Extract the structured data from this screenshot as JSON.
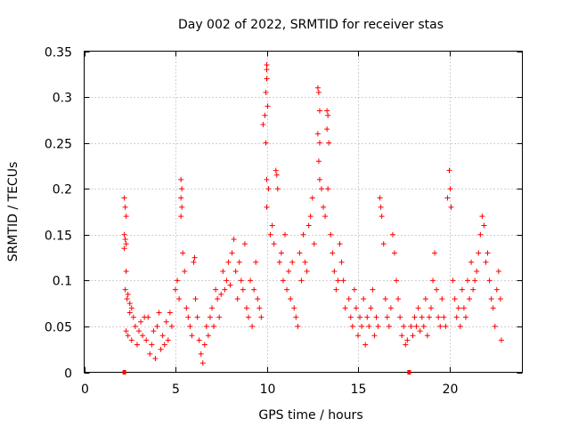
{
  "chart_data": {
    "type": "scatter",
    "title": "Day 002 of 2022, SRMTID for receiver stas",
    "xlabel": "GPS time / hours",
    "ylabel": "SRMTID / TECUs",
    "xlim": [
      0,
      24
    ],
    "ylim": [
      0,
      0.35
    ],
    "xticks": [
      0,
      5,
      10,
      15,
      20
    ],
    "yticks": [
      0,
      0.05,
      0.1,
      0.15,
      0.2,
      0.25,
      0.3,
      0.35
    ],
    "xtick_labels": [
      "0",
      "5",
      "10",
      "15",
      "20"
    ],
    "ytick_labels": [
      "0",
      "0.05",
      "0.1",
      "0.15",
      "0.2",
      "0.25",
      "0.3",
      "0.35"
    ],
    "grid": true,
    "marker": "+",
    "series_color": "#ff0000",
    "axis_markers": [
      {
        "x": 2.2,
        "y": 0
      },
      {
        "x": 17.8,
        "y": 0
      }
    ],
    "series": [
      {
        "name": "stas",
        "points": [
          [
            2.2,
            0.19
          ],
          [
            2.25,
            0.18
          ],
          [
            2.3,
            0.17
          ],
          [
            2.2,
            0.15
          ],
          [
            2.25,
            0.145
          ],
          [
            2.3,
            0.14
          ],
          [
            2.2,
            0.135
          ],
          [
            2.3,
            0.11
          ],
          [
            2.25,
            0.09
          ],
          [
            2.35,
            0.08
          ],
          [
            2.4,
            0.085
          ],
          [
            2.5,
            0.075
          ],
          [
            2.6,
            0.07
          ],
          [
            2.5,
            0.065
          ],
          [
            2.7,
            0.06
          ],
          [
            2.3,
            0.045
          ],
          [
            2.4,
            0.04
          ],
          [
            2.6,
            0.035
          ],
          [
            2.8,
            0.05
          ],
          [
            3.0,
            0.045
          ],
          [
            3.2,
            0.04
          ],
          [
            3.4,
            0.035
          ],
          [
            3.5,
            0.06
          ],
          [
            3.7,
            0.03
          ],
          [
            3.8,
            0.045
          ],
          [
            4.0,
            0.05
          ],
          [
            4.2,
            0.025
          ],
          [
            4.3,
            0.04
          ],
          [
            4.5,
            0.055
          ],
          [
            4.6,
            0.035
          ],
          [
            4.8,
            0.05
          ],
          [
            3.1,
            0.055
          ],
          [
            3.6,
            0.02
          ],
          [
            4.1,
            0.065
          ],
          [
            2.9,
            0.03
          ],
          [
            3.3,
            0.06
          ],
          [
            4.4,
            0.03
          ],
          [
            4.7,
            0.065
          ],
          [
            3.9,
            0.015
          ],
          [
            5.0,
            0.09
          ],
          [
            5.1,
            0.1
          ],
          [
            5.2,
            0.08
          ],
          [
            5.3,
            0.21
          ],
          [
            5.35,
            0.2
          ],
          [
            5.3,
            0.19
          ],
          [
            5.35,
            0.18
          ],
          [
            5.3,
            0.17
          ],
          [
            5.4,
            0.13
          ],
          [
            5.5,
            0.11
          ],
          [
            5.6,
            0.07
          ],
          [
            5.7,
            0.06
          ],
          [
            5.8,
            0.05
          ],
          [
            5.9,
            0.04
          ],
          [
            6.0,
            0.12
          ],
          [
            6.05,
            0.125
          ],
          [
            6.1,
            0.08
          ],
          [
            6.2,
            0.06
          ],
          [
            6.3,
            0.035
          ],
          [
            6.4,
            0.02
          ],
          [
            6.5,
            0.01
          ],
          [
            6.6,
            0.03
          ],
          [
            6.7,
            0.05
          ],
          [
            6.8,
            0.04
          ],
          [
            6.9,
            0.06
          ],
          [
            7.0,
            0.07
          ],
          [
            7.1,
            0.05
          ],
          [
            7.2,
            0.09
          ],
          [
            7.3,
            0.08
          ],
          [
            7.4,
            0.06
          ],
          [
            7.5,
            0.085
          ],
          [
            7.6,
            0.11
          ],
          [
            7.7,
            0.09
          ],
          [
            7.8,
            0.1
          ],
          [
            7.9,
            0.12
          ],
          [
            8.0,
            0.095
          ],
          [
            8.1,
            0.13
          ],
          [
            8.2,
            0.145
          ],
          [
            8.3,
            0.11
          ],
          [
            8.4,
            0.08
          ],
          [
            8.5,
            0.12
          ],
          [
            8.6,
            0.1
          ],
          [
            8.7,
            0.09
          ],
          [
            8.8,
            0.14
          ],
          [
            8.9,
            0.07
          ],
          [
            9.0,
            0.06
          ],
          [
            9.1,
            0.1
          ],
          [
            9.2,
            0.05
          ],
          [
            9.3,
            0.09
          ],
          [
            9.4,
            0.12
          ],
          [
            9.5,
            0.08
          ],
          [
            9.6,
            0.07
          ],
          [
            9.7,
            0.06
          ],
          [
            9.8,
            0.27
          ],
          [
            9.9,
            0.28
          ],
          [
            9.95,
            0.25
          ],
          [
            10.0,
            0.335
          ],
          [
            10.0,
            0.33
          ],
          [
            10.0,
            0.32
          ],
          [
            9.95,
            0.305
          ],
          [
            10.05,
            0.29
          ],
          [
            10.0,
            0.21
          ],
          [
            10.1,
            0.2
          ],
          [
            10.0,
            0.18
          ],
          [
            10.2,
            0.15
          ],
          [
            10.3,
            0.16
          ],
          [
            10.4,
            0.14
          ],
          [
            10.5,
            0.22
          ],
          [
            10.55,
            0.215
          ],
          [
            10.6,
            0.2
          ],
          [
            10.7,
            0.12
          ],
          [
            10.8,
            0.13
          ],
          [
            10.9,
            0.1
          ],
          [
            11.0,
            0.15
          ],
          [
            11.1,
            0.09
          ],
          [
            11.2,
            0.11
          ],
          [
            11.3,
            0.08
          ],
          [
            11.4,
            0.12
          ],
          [
            11.5,
            0.07
          ],
          [
            11.6,
            0.06
          ],
          [
            11.7,
            0.05
          ],
          [
            11.8,
            0.13
          ],
          [
            11.9,
            0.1
          ],
          [
            12.0,
            0.15
          ],
          [
            12.1,
            0.12
          ],
          [
            12.2,
            0.11
          ],
          [
            12.3,
            0.16
          ],
          [
            12.4,
            0.17
          ],
          [
            12.5,
            0.19
          ],
          [
            12.6,
            0.14
          ],
          [
            12.8,
            0.31
          ],
          [
            12.85,
            0.305
          ],
          [
            12.9,
            0.285
          ],
          [
            12.8,
            0.26
          ],
          [
            12.9,
            0.25
          ],
          [
            12.85,
            0.23
          ],
          [
            12.9,
            0.21
          ],
          [
            13.0,
            0.2
          ],
          [
            13.1,
            0.18
          ],
          [
            13.2,
            0.17
          ],
          [
            13.3,
            0.285
          ],
          [
            13.35,
            0.28
          ],
          [
            13.3,
            0.265
          ],
          [
            13.4,
            0.25
          ],
          [
            13.35,
            0.2
          ],
          [
            13.5,
            0.15
          ],
          [
            13.6,
            0.13
          ],
          [
            13.7,
            0.11
          ],
          [
            13.8,
            0.09
          ],
          [
            13.9,
            0.1
          ],
          [
            14.0,
            0.14
          ],
          [
            14.1,
            0.12
          ],
          [
            14.2,
            0.1
          ],
          [
            14.3,
            0.07
          ],
          [
            14.5,
            0.08
          ],
          [
            14.6,
            0.06
          ],
          [
            14.7,
            0.05
          ],
          [
            14.8,
            0.09
          ],
          [
            14.9,
            0.07
          ],
          [
            15.0,
            0.04
          ],
          [
            15.1,
            0.06
          ],
          [
            15.2,
            0.05
          ],
          [
            15.3,
            0.08
          ],
          [
            15.4,
            0.03
          ],
          [
            15.5,
            0.06
          ],
          [
            15.6,
            0.05
          ],
          [
            15.7,
            0.07
          ],
          [
            15.8,
            0.09
          ],
          [
            15.9,
            0.04
          ],
          [
            16.0,
            0.06
          ],
          [
            16.1,
            0.05
          ],
          [
            16.2,
            0.19
          ],
          [
            16.25,
            0.18
          ],
          [
            16.3,
            0.17
          ],
          [
            16.4,
            0.14
          ],
          [
            16.5,
            0.08
          ],
          [
            16.6,
            0.06
          ],
          [
            16.7,
            0.05
          ],
          [
            16.8,
            0.07
          ],
          [
            16.9,
            0.15
          ],
          [
            17.0,
            0.13
          ],
          [
            17.1,
            0.1
          ],
          [
            17.2,
            0.08
          ],
          [
            17.3,
            0.06
          ],
          [
            17.4,
            0.04
          ],
          [
            17.5,
            0.05
          ],
          [
            17.6,
            0.03
          ],
          [
            17.7,
            0.035
          ],
          [
            17.9,
            0.05
          ],
          [
            18.0,
            0.04
          ],
          [
            18.1,
            0.06
          ],
          [
            18.2,
            0.05
          ],
          [
            18.3,
            0.07
          ],
          [
            18.4,
            0.045
          ],
          [
            18.5,
            0.06
          ],
          [
            18.6,
            0.05
          ],
          [
            18.7,
            0.08
          ],
          [
            18.8,
            0.04
          ],
          [
            18.9,
            0.06
          ],
          [
            19.0,
            0.07
          ],
          [
            19.1,
            0.1
          ],
          [
            19.2,
            0.13
          ],
          [
            19.3,
            0.09
          ],
          [
            19.4,
            0.06
          ],
          [
            19.5,
            0.05
          ],
          [
            19.6,
            0.08
          ],
          [
            19.7,
            0.06
          ],
          [
            19.8,
            0.05
          ],
          [
            19.9,
            0.19
          ],
          [
            20.0,
            0.22
          ],
          [
            20.05,
            0.2
          ],
          [
            20.1,
            0.18
          ],
          [
            20.2,
            0.1
          ],
          [
            20.3,
            0.08
          ],
          [
            20.4,
            0.06
          ],
          [
            20.5,
            0.07
          ],
          [
            20.6,
            0.05
          ],
          [
            20.7,
            0.09
          ],
          [
            20.8,
            0.07
          ],
          [
            20.9,
            0.06
          ],
          [
            21.0,
            0.1
          ],
          [
            21.1,
            0.08
          ],
          [
            21.2,
            0.12
          ],
          [
            21.3,
            0.09
          ],
          [
            21.4,
            0.1
          ],
          [
            21.5,
            0.11
          ],
          [
            21.6,
            0.13
          ],
          [
            21.7,
            0.15
          ],
          [
            21.8,
            0.17
          ],
          [
            21.9,
            0.16
          ],
          [
            22.0,
            0.12
          ],
          [
            22.1,
            0.13
          ],
          [
            22.2,
            0.1
          ],
          [
            22.3,
            0.08
          ],
          [
            22.4,
            0.07
          ],
          [
            22.5,
            0.05
          ],
          [
            22.6,
            0.09
          ],
          [
            22.7,
            0.11
          ],
          [
            22.8,
            0.08
          ],
          [
            22.85,
            0.035
          ]
        ]
      }
    ]
  }
}
